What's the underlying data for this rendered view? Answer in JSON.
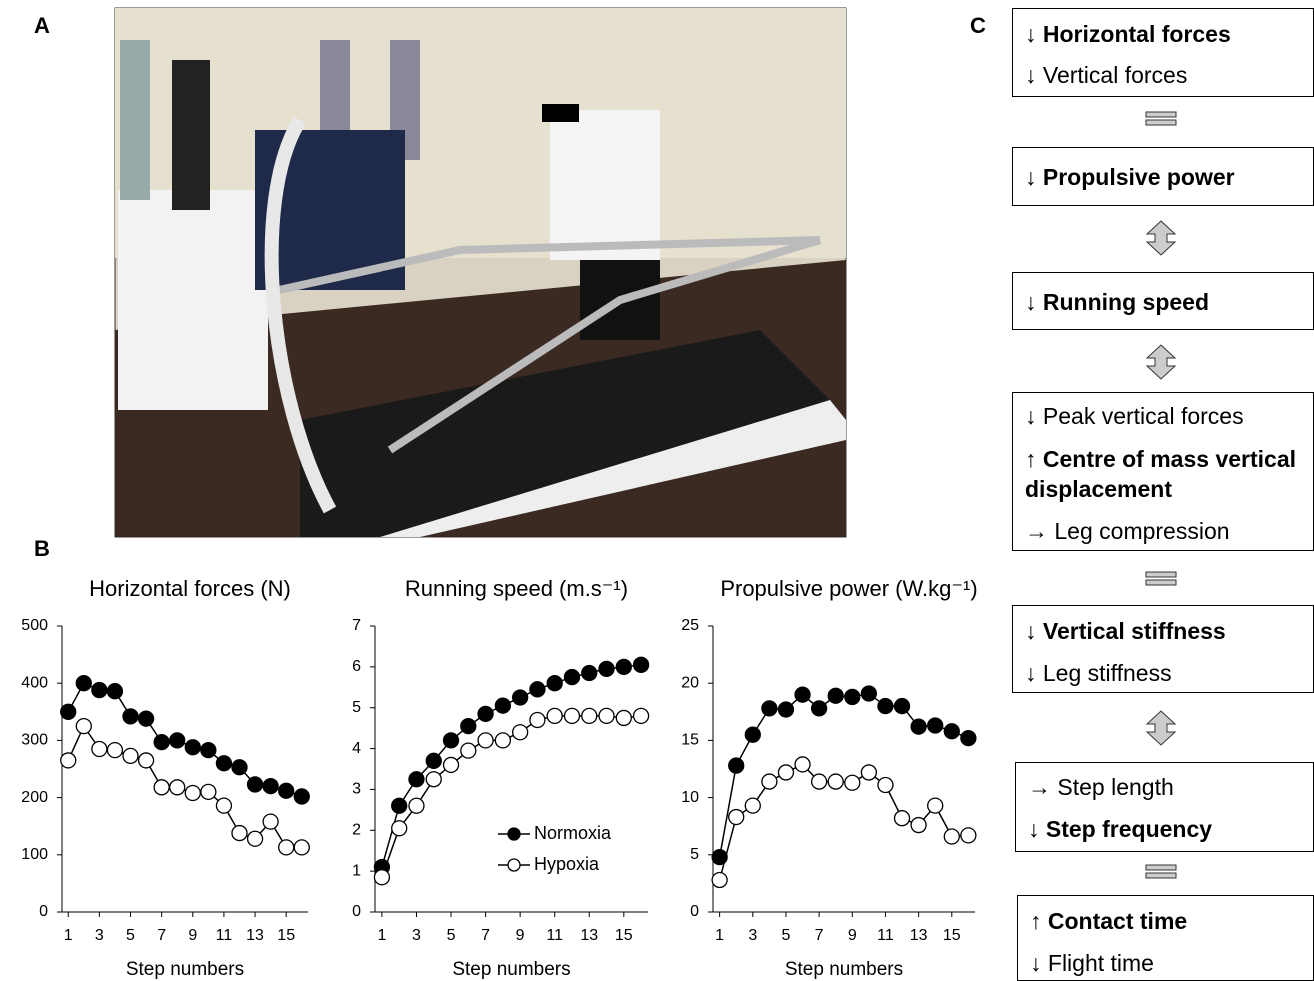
{
  "panel_labels": [
    "A",
    "B",
    "C"
  ],
  "chart_data": [
    {
      "type": "line",
      "title": "Horizontal forces (N)",
      "x_label": "Step numbers",
      "x": [
        1,
        2,
        3,
        4,
        5,
        6,
        7,
        8,
        9,
        10,
        11,
        12,
        13,
        14,
        15,
        16
      ],
      "xlim": [
        0.6,
        16.4
      ],
      "xticks": [
        1,
        3,
        5,
        7,
        9,
        11,
        13,
        15
      ],
      "ylim": [
        0,
        500
      ],
      "yticks": [
        0,
        100,
        200,
        300,
        400,
        500
      ],
      "legend": false,
      "series": [
        {
          "color": "#000000",
          "marker_fill": "#000000",
          "values": [
            350,
            400,
            388,
            386,
            342,
            338,
            297,
            300,
            288,
            283,
            260,
            253,
            223,
            220,
            212,
            202
          ]
        },
        {
          "color": "#000000",
          "marker_fill": "#ffffff",
          "values": [
            265,
            325,
            285,
            283,
            273,
            265,
            218,
            218,
            208,
            210,
            186,
            138,
            128,
            158,
            113,
            113
          ]
        }
      ]
    },
    {
      "type": "line",
      "title": "Running speed (m.s⁻¹)",
      "x_label": "Step numbers",
      "x": [
        1,
        2,
        3,
        4,
        5,
        6,
        7,
        8,
        9,
        10,
        11,
        12,
        13,
        14,
        15,
        16
      ],
      "xlim": [
        0.6,
        16.4
      ],
      "xticks": [
        1,
        3,
        5,
        7,
        9,
        11,
        13,
        15
      ],
      "ylim": [
        0,
        7
      ],
      "yticks": [
        0,
        1,
        2,
        3,
        4,
        5,
        6,
        7
      ],
      "legend": true,
      "legend_position": "lower right",
      "series": [
        {
          "name": "Normoxia",
          "color": "#000000",
          "marker_fill": "#000000",
          "values": [
            1.1,
            2.6,
            3.25,
            3.7,
            4.2,
            4.55,
            4.85,
            5.05,
            5.25,
            5.45,
            5.6,
            5.75,
            5.85,
            5.95,
            6.0,
            6.05
          ]
        },
        {
          "name": "Hypoxia",
          "color": "#000000",
          "marker_fill": "#ffffff",
          "values": [
            0.85,
            2.05,
            2.6,
            3.25,
            3.6,
            3.95,
            4.2,
            4.2,
            4.4,
            4.7,
            4.8,
            4.8,
            4.8,
            4.8,
            4.75,
            4.8
          ]
        }
      ]
    },
    {
      "type": "line",
      "title": "Propulsive power (W.kg⁻¹)",
      "x_label": "Step numbers",
      "x": [
        1,
        2,
        3,
        4,
        5,
        6,
        7,
        8,
        9,
        10,
        11,
        12,
        13,
        14,
        15,
        16
      ],
      "xlim": [
        0.6,
        16.4
      ],
      "xticks": [
        1,
        3,
        5,
        7,
        9,
        11,
        13,
        15
      ],
      "ylim": [
        0,
        25
      ],
      "yticks": [
        0,
        5,
        10,
        15,
        20,
        25
      ],
      "legend": false,
      "series": [
        {
          "color": "#000000",
          "marker_fill": "#000000",
          "values": [
            4.8,
            12.8,
            15.5,
            17.8,
            17.7,
            19,
            17.8,
            18.9,
            18.8,
            19.1,
            18,
            18,
            16.2,
            16.3,
            15.8,
            15.2
          ]
        },
        {
          "color": "#000000",
          "marker_fill": "#ffffff",
          "values": [
            2.8,
            8.3,
            9.3,
            11.4,
            12.2,
            12.9,
            11.4,
            11.4,
            11.3,
            12.2,
            11.1,
            8.2,
            7.6,
            9.3,
            6.6,
            6.7
          ]
        }
      ]
    }
  ],
  "flow": {
    "boxes": [
      [
        "↓ Horizontal forces",
        "↓ Vertical forces"
      ],
      [
        "↓ Propulsive power"
      ],
      [
        "↓ Running speed"
      ],
      [
        "↓ Peak vertical forces",
        "↑ Centre of mass vertical displacement",
        "→ Leg compression"
      ],
      [
        "↓ Vertical stiffness",
        "↓ Leg stiffness"
      ],
      [
        "→ Step length",
        "↓ Step frequency"
      ],
      [
        "↑ Contact time",
        "↓ Flight time"
      ]
    ]
  }
}
